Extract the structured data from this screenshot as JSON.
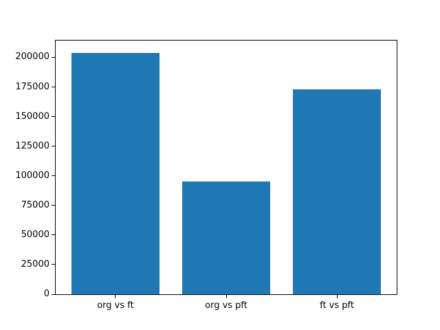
{
  "chart_data": {
    "type": "bar",
    "categories": [
      "org vs ft",
      "org vs pft",
      "ft vs pft"
    ],
    "values": [
      204000,
      95000,
      173000
    ],
    "title": "",
    "xlabel": "",
    "ylabel": "",
    "ylim": [
      0,
      214200
    ],
    "yticks": [
      0,
      25000,
      50000,
      75000,
      100000,
      125000,
      150000,
      175000,
      200000
    ],
    "ytick_labels": [
      "0",
      "25000",
      "50000",
      "75000",
      "100000",
      "125000",
      "150000",
      "175000",
      "200000"
    ],
    "grid": "off",
    "legend": "none",
    "bar_color": "#1f77b4",
    "spine_color": "#000000",
    "background_color": "#ffffff"
  }
}
